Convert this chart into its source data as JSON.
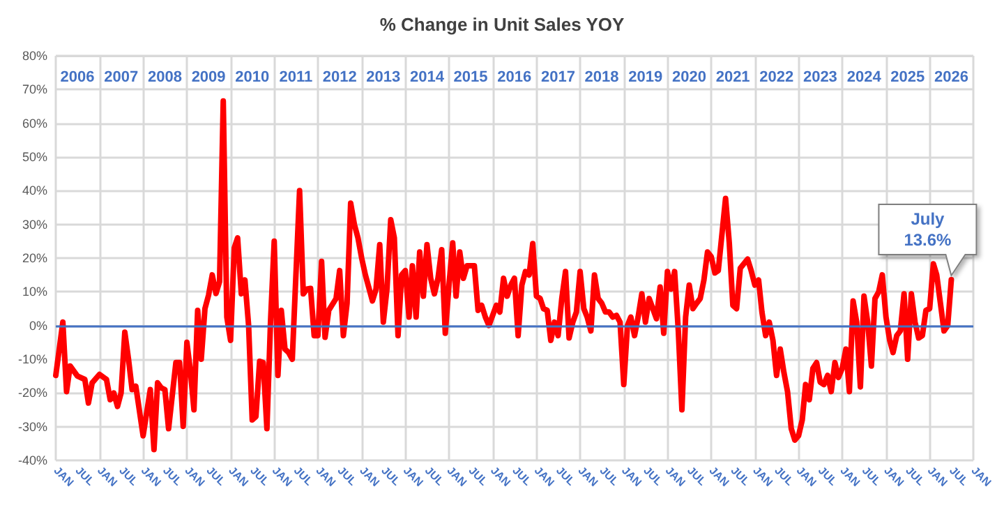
{
  "chart_data": {
    "type": "line",
    "title": "% Change in Unit Sales YOY",
    "x": [
      "2006-01",
      "2006-03",
      "2006-04",
      "2006-05",
      "2006-07",
      "2006-09",
      "2006-10",
      "2006-11",
      "2007-01",
      "2007-03",
      "2007-04",
      "2007-05",
      "2007-06",
      "2007-07",
      "2007-08",
      "2007-09",
      "2007-10",
      "2007-11",
      "2008-01",
      "2008-03",
      "2008-04",
      "2008-05",
      "2008-06",
      "2008-07",
      "2008-08",
      "2008-10",
      "2008-11",
      "2008-12",
      "2009-01",
      "2009-02",
      "2009-03",
      "2009-04",
      "2009-05",
      "2009-06",
      "2009-07",
      "2009-08",
      "2009-09",
      "2009-10",
      "2009-11",
      "2009-12",
      "2010-01",
      "2010-02",
      "2010-03",
      "2010-04",
      "2010-05",
      "2010-06",
      "2010-07",
      "2010-08",
      "2010-09",
      "2010-10",
      "2010-11",
      "2010-12",
      "2011-01",
      "2011-02",
      "2011-03",
      "2011-04",
      "2011-05",
      "2011-06",
      "2011-08",
      "2011-09",
      "2011-10",
      "2011-11",
      "2011-12",
      "2012-01",
      "2012-02",
      "2012-03",
      "2012-04",
      "2012-06",
      "2012-07",
      "2012-08",
      "2012-09",
      "2012-10",
      "2012-11",
      "2012-12",
      "2013-01",
      "2013-02",
      "2013-04",
      "2013-05",
      "2013-06",
      "2013-07",
      "2013-08",
      "2013-09",
      "2013-10",
      "2013-11",
      "2013-12",
      "2014-01",
      "2014-02",
      "2014-03",
      "2014-04",
      "2014-05",
      "2014-06",
      "2014-07",
      "2014-08",
      "2014-09",
      "2014-10",
      "2014-11",
      "2014-12",
      "2015-01",
      "2015-02",
      "2015-03",
      "2015-04",
      "2015-05",
      "2015-06",
      "2015-08",
      "2015-09",
      "2015-10",
      "2015-11",
      "2015-12",
      "2016-01",
      "2016-02",
      "2016-03",
      "2016-04",
      "2016-05",
      "2016-06",
      "2016-07",
      "2016-08",
      "2016-09",
      "2016-10",
      "2016-11",
      "2016-12",
      "2017-01",
      "2017-02",
      "2017-03",
      "2017-04",
      "2017-05",
      "2017-06",
      "2017-07",
      "2017-08",
      "2017-09",
      "2017-10",
      "2017-11",
      "2017-12",
      "2018-01",
      "2018-02",
      "2018-03",
      "2018-04",
      "2018-05",
      "2018-06",
      "2018-07",
      "2018-08",
      "2018-09",
      "2018-10",
      "2018-11",
      "2018-12",
      "2019-01",
      "2019-02",
      "2019-03",
      "2019-04",
      "2019-05",
      "2019-06",
      "2019-07",
      "2019-08",
      "2019-09",
      "2019-10",
      "2019-11",
      "2019-12",
      "2020-01",
      "2020-02",
      "2020-03",
      "2020-04",
      "2020-05",
      "2020-06",
      "2020-07",
      "2020-08",
      "2020-09",
      "2020-10",
      "2020-11",
      "2020-12",
      "2021-01",
      "2021-02",
      "2021-03",
      "2021-05",
      "2021-06",
      "2021-07",
      "2021-08",
      "2021-09",
      "2021-11",
      "2021-12",
      "2022-01",
      "2022-02",
      "2022-03",
      "2022-04",
      "2022-05",
      "2022-06",
      "2022-07",
      "2022-08",
      "2022-09",
      "2022-10",
      "2022-11",
      "2022-12",
      "2023-01",
      "2023-02",
      "2023-03",
      "2023-04",
      "2023-05",
      "2023-06",
      "2023-07",
      "2023-08",
      "2023-09",
      "2023-10",
      "2023-11",
      "2023-12",
      "2024-01",
      "2024-02",
      "2024-03",
      "2024-04",
      "2024-05",
      "2024-06",
      "2024-07",
      "2024-08",
      "2024-09",
      "2024-10",
      "2024-11",
      "2024-12",
      "2025-01",
      "2025-02",
      "2025-03",
      "2025-04",
      "2025-05",
      "2025-06",
      "2025-07",
      "2025-08",
      "2025-09",
      "2025-10",
      "2025-11",
      "2025-12",
      "2026-01",
      "2026-02",
      "2026-03",
      "2026-04",
      "2026-05",
      "2026-06",
      "2026-07"
    ],
    "values": [
      -14.8,
      1,
      -19.6,
      -12,
      -15,
      -16,
      -23,
      -17,
      -14.5,
      -16,
      -22,
      -20,
      -24,
      -20,
      -2,
      -10,
      -19,
      -18,
      -32.7,
      -19,
      -36.8,
      -17,
      -18.5,
      -19,
      -30.6,
      -11,
      -11,
      -29.9,
      -5,
      -14,
      -25,
      4.5,
      -10,
      5,
      9,
      15,
      9.5,
      13,
      66.6,
      2.5,
      -4.4,
      23,
      26,
      9.4,
      13.5,
      0,
      -28,
      -27,
      -10.6,
      -11,
      -30.6,
      1,
      25,
      -14.8,
      4.5,
      -7,
      -8,
      -10,
      40,
      9.4,
      10.8,
      11,
      -3,
      -3,
      19,
      -3.5,
      4.5,
      8,
      16.3,
      -3,
      6.6,
      36.3,
      30,
      26,
      20,
      15,
      7.3,
      10.8,
      24,
      1,
      11,
      31.4,
      26,
      -3,
      15,
      16.3,
      2.5,
      17.7,
      2.5,
      21.8,
      8.7,
      24,
      14,
      9.4,
      14,
      22.5,
      -2.3,
      12,
      24.5,
      8.7,
      21.8,
      14,
      17.7,
      17.7,
      4.5,
      6,
      2.5,
      0,
      3,
      6,
      4,
      14,
      8.7,
      12,
      14,
      -3,
      12,
      16,
      15,
      24.3,
      8.7,
      8,
      5,
      4.5,
      -4.4,
      1,
      -3,
      8,
      16,
      -3.7,
      1,
      4,
      16,
      5,
      2.5,
      -1.6,
      15,
      8,
      6.6,
      4,
      4,
      2.5,
      3,
      1,
      -17.5,
      0,
      2.5,
      -3,
      2.5,
      9.4,
      1,
      8,
      5,
      2,
      11.4,
      -2.3,
      16,
      10.8,
      16,
      -1.6,
      -25,
      2.5,
      12,
      5,
      6.6,
      8,
      13.5,
      21.8,
      20.4,
      15.6,
      16.3,
      37.7,
      24.5,
      6,
      5,
      17,
      19.7,
      16.3,
      12,
      13.5,
      4,
      -3,
      1,
      -4.4,
      -14.8,
      -7,
      -14,
      -19.6,
      -30.6,
      -34,
      -32.7,
      -28,
      -17.5,
      -22,
      -12.7,
      -11,
      -16.8,
      -17.5,
      -14.8,
      -19.6,
      -11,
      -15.4,
      -12.7,
      -7,
      -19.6,
      7.3,
      1,
      -18.2,
      8.7,
      1,
      -12,
      8,
      10,
      15,
      2.5,
      -4.4,
      -8,
      -3,
      -1.6,
      9.4,
      -10,
      9.4,
      1,
      -3.7,
      -3,
      4.5,
      5,
      18.3,
      15,
      6.6,
      -1.6,
      0,
      13.6
    ],
    "color": "#ff0000",
    "marker": "none",
    "line_style": "solid",
    "grid": true,
    "xlim": [
      "2006-01",
      "2027-01"
    ],
    "xticks": [
      {
        "value": "2006-01",
        "label": "JAN"
      },
      {
        "value": "2006-07",
        "label": "JUL"
      },
      {
        "value": "2007-01",
        "label": "JAN"
      },
      {
        "value": "2007-07",
        "label": "JUL"
      },
      {
        "value": "2008-01",
        "label": "JAN"
      },
      {
        "value": "2008-07",
        "label": "JUL"
      },
      {
        "value": "2009-01",
        "label": "JAN"
      },
      {
        "value": "2009-07",
        "label": "JUL"
      },
      {
        "value": "2010-01",
        "label": "JAN"
      },
      {
        "value": "2010-07",
        "label": "JUL"
      },
      {
        "value": "2011-01",
        "label": "JAN"
      },
      {
        "value": "2011-07",
        "label": "JUL"
      },
      {
        "value": "2012-01",
        "label": "JAN"
      },
      {
        "value": "2012-07",
        "label": "JUL"
      },
      {
        "value": "2013-01",
        "label": "JAN"
      },
      {
        "value": "2013-07",
        "label": "JUL"
      },
      {
        "value": "2014-01",
        "label": "JAN"
      },
      {
        "value": "2014-07",
        "label": "JUL"
      },
      {
        "value": "2015-01",
        "label": "JAN"
      },
      {
        "value": "2015-07",
        "label": "JUL"
      },
      {
        "value": "2016-01",
        "label": "JAN"
      },
      {
        "value": "2016-07",
        "label": "JUL"
      },
      {
        "value": "2017-01",
        "label": "JAN"
      },
      {
        "value": "2017-07",
        "label": "JUL"
      },
      {
        "value": "2018-01",
        "label": "JAN"
      },
      {
        "value": "2018-07",
        "label": "JUL"
      },
      {
        "value": "2019-01",
        "label": "JAN"
      },
      {
        "value": "2019-07",
        "label": "JUL"
      },
      {
        "value": "2020-01",
        "label": "JAN"
      },
      {
        "value": "2020-07",
        "label": "JUL"
      },
      {
        "value": "2021-01",
        "label": "JAN"
      },
      {
        "value": "2021-07",
        "label": "JUL"
      },
      {
        "value": "2022-01",
        "label": "JAN"
      },
      {
        "value": "2022-07",
        "label": "JUL"
      },
      {
        "value": "2023-01",
        "label": "JAN"
      },
      {
        "value": "2023-07",
        "label": "JUL"
      },
      {
        "value": "2024-01",
        "label": "JAN"
      },
      {
        "value": "2024-07",
        "label": "JUL"
      },
      {
        "value": "2025-01",
        "label": "JAN"
      },
      {
        "value": "2025-07",
        "label": "JUL"
      },
      {
        "value": "2026-01",
        "label": "JAN"
      },
      {
        "value": "2026-07",
        "label": "JUL"
      },
      {
        "value": "2027-01",
        "label": "JAN"
      }
    ],
    "x2lim": [
      "2006-01",
      "2027-01"
    ],
    "x2ticks": [
      {
        "value": "2006-01",
        "label": null
      },
      {
        "value": "2006-07",
        "label": "2006"
      },
      {
        "value": "2007-01",
        "label": null
      },
      {
        "value": "2007-07",
        "label": "2007"
      },
      {
        "value": "2008-01",
        "label": null
      },
      {
        "value": "2008-07",
        "label": "2008"
      },
      {
        "value": "2009-01",
        "label": null
      },
      {
        "value": "2009-07",
        "label": "2009"
      },
      {
        "value": "2010-01",
        "label": null
      },
      {
        "value": "2010-07",
        "label": "2010"
      },
      {
        "value": "2011-01",
        "label": null
      },
      {
        "value": "2011-07",
        "label": "2011"
      },
      {
        "value": "2012-01",
        "label": null
      },
      {
        "value": "2012-07",
        "label": "2012"
      },
      {
        "value": "2013-01",
        "label": null
      },
      {
        "value": "2013-07",
        "label": "2013"
      },
      {
        "value": "2014-01",
        "label": null
      },
      {
        "value": "2014-07",
        "label": "2014"
      },
      {
        "value": "2015-01",
        "label": null
      },
      {
        "value": "2015-07",
        "label": "2015"
      },
      {
        "value": "2016-01",
        "label": null
      },
      {
        "value": "2016-07",
        "label": "2016"
      },
      {
        "value": "2017-01",
        "label": null
      },
      {
        "value": "2017-07",
        "label": "2017"
      },
      {
        "value": "2018-01",
        "label": null
      },
      {
        "value": "2018-07",
        "label": "2018"
      },
      {
        "value": "2019-01",
        "label": null
      },
      {
        "value": "2019-07",
        "label": "2019"
      },
      {
        "value": "2020-01",
        "label": null
      },
      {
        "value": "2020-07",
        "label": "2020"
      },
      {
        "value": "2021-01",
        "label": null
      },
      {
        "value": "2021-07",
        "label": "2021"
      },
      {
        "value": "2022-01",
        "label": null
      },
      {
        "value": "2022-07",
        "label": "2022"
      },
      {
        "value": "2023-01",
        "label": null
      },
      {
        "value": "2023-07",
        "label": "2023"
      },
      {
        "value": "2024-01",
        "label": null
      },
      {
        "value": "2024-07",
        "label": "2024"
      },
      {
        "value": "2025-01",
        "label": null
      },
      {
        "value": "2025-07",
        "label": "2025"
      },
      {
        "value": "2026-01",
        "label": null
      },
      {
        "value": "2026-07",
        "label": "2026"
      },
      {
        "value": "2027-01",
        "label": null
      }
    ],
    "ylim": [
      -40,
      80
    ],
    "yticks": [
      {
        "value": -40,
        "label": "-40%"
      },
      {
        "value": -30,
        "label": "-30%"
      },
      {
        "value": -20,
        "label": "-20%"
      },
      {
        "value": -10,
        "label": "-10%"
      },
      {
        "value": 0,
        "label": "0%"
      },
      {
        "value": 10,
        "label": "10%"
      },
      {
        "value": 20,
        "label": "20%"
      },
      {
        "value": 30,
        "label": "30%"
      },
      {
        "value": 40,
        "label": "40%"
      },
      {
        "value": 50,
        "label": "50%"
      },
      {
        "value": 60,
        "label": "60%"
      },
      {
        "value": 70,
        "label": "70%"
      },
      {
        "value": 80,
        "label": "80%"
      }
    ],
    "ref_lines": [
      {
        "axis": "y",
        "value": 0,
        "color": "#4472c4"
      }
    ],
    "annotations": [
      {
        "text": "July\n13.6%",
        "x": "2026-07",
        "y": 13.6
      }
    ]
  }
}
